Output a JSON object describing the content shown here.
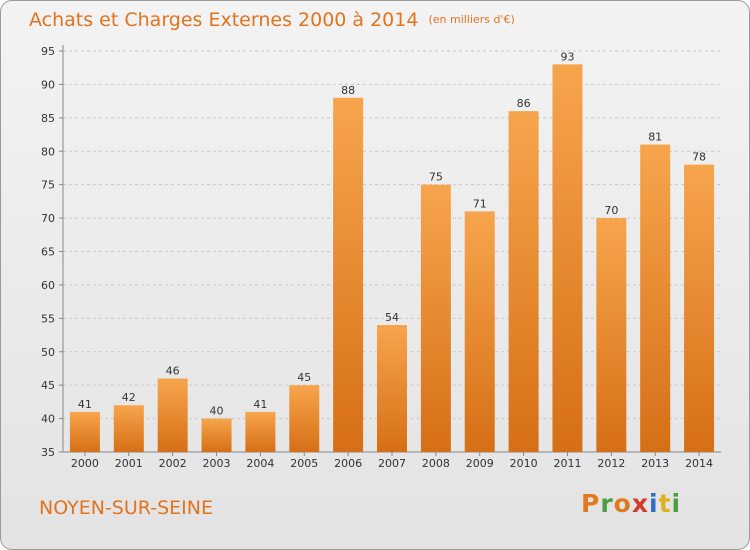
{
  "header": {
    "title": "Achats et Charges Externes 2000 à 2014",
    "unit": "(en milliers d'€)"
  },
  "footer": {
    "city": "NOYEN-SUR-SEINE",
    "logo_text": "Proxiti"
  },
  "colors": {
    "accent": "#e2731d",
    "bar_top": "#f7a54d",
    "bar_bottom": "#d66f16",
    "logo_letters": [
      "#e07a1f",
      "#4aa03f",
      "#e07a1f",
      "#d23a2c",
      "#2f6fc0",
      "#e0b21f",
      "#4aa03f"
    ]
  },
  "chart_data": {
    "type": "bar",
    "categories": [
      "2000",
      "2001",
      "2002",
      "2003",
      "2004",
      "2005",
      "2006",
      "2007",
      "2008",
      "2009",
      "2010",
      "2011",
      "2012",
      "2013",
      "2014"
    ],
    "values": [
      41,
      42,
      46,
      40,
      41,
      45,
      88,
      54,
      75,
      71,
      86,
      93,
      70,
      81,
      78
    ],
    "ylim": [
      35,
      95
    ],
    "yticks": [
      35,
      40,
      45,
      50,
      55,
      60,
      65,
      70,
      75,
      80,
      85,
      90,
      95
    ],
    "grid": true,
    "legend": "none"
  }
}
